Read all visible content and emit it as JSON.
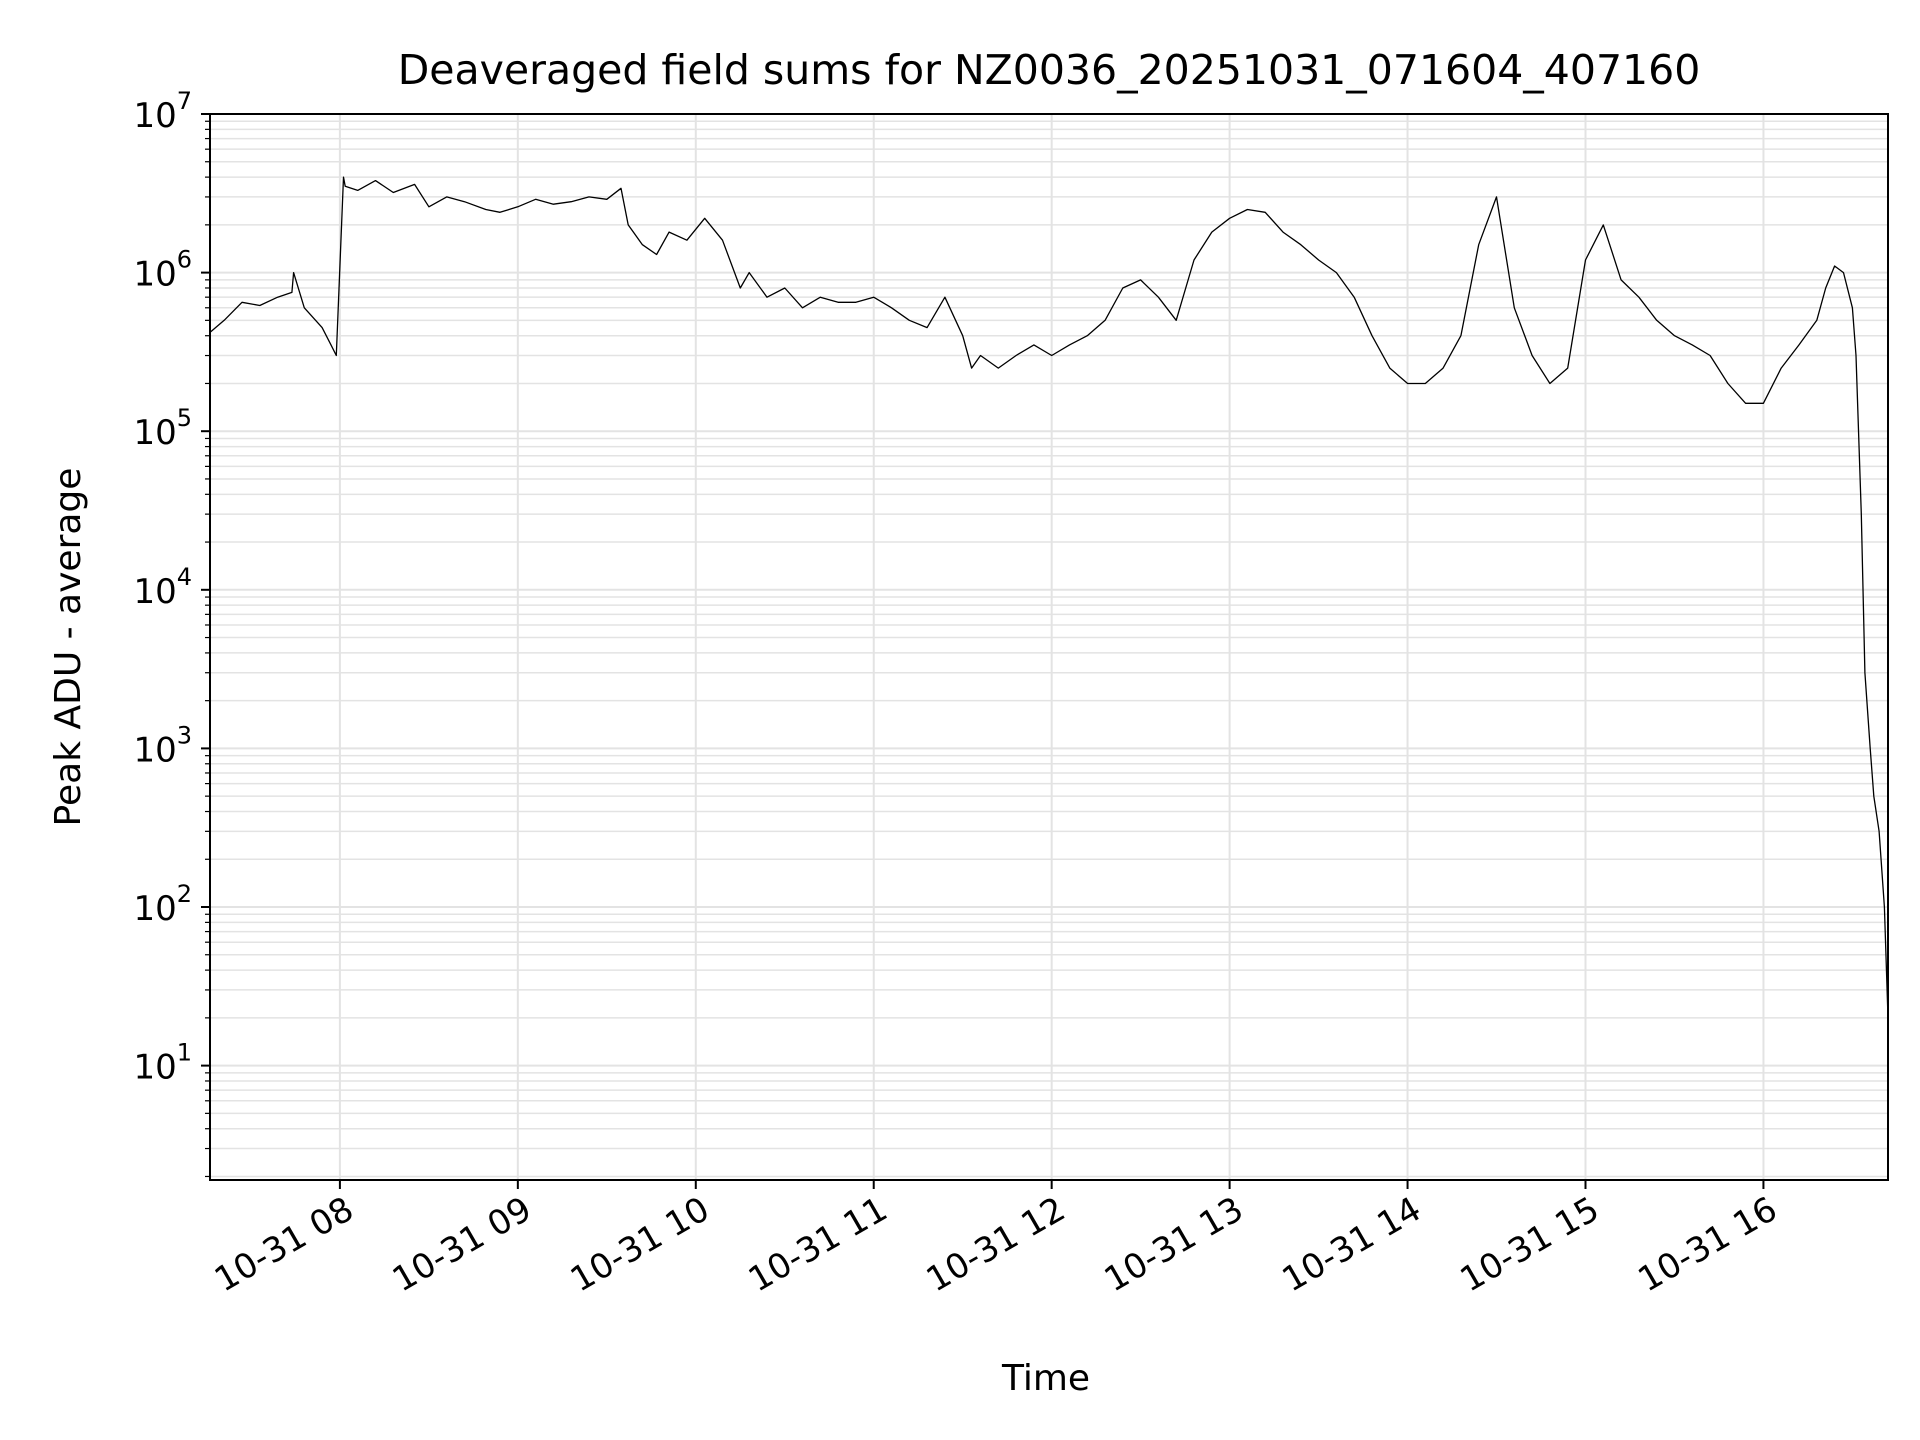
{
  "chart_data": {
    "type": "line",
    "title": "Deaveraged field sums for NZ0036_20251031_071604_407160",
    "xlabel": "Time",
    "ylabel": "Peak ADU - average",
    "yscale": "log",
    "xlim_hours": [
      7.27,
      16.7
    ],
    "ylim": [
      1.9,
      10000000
    ],
    "grid": "on",
    "legend": "none",
    "line_color": "#000000",
    "x_ticks": [
      {
        "hour": 8,
        "label": "10-31 08"
      },
      {
        "hour": 9,
        "label": "10-31 09"
      },
      {
        "hour": 10,
        "label": "10-31 10"
      },
      {
        "hour": 11,
        "label": "10-31 11"
      },
      {
        "hour": 12,
        "label": "10-31 12"
      },
      {
        "hour": 13,
        "label": "10-31 13"
      },
      {
        "hour": 14,
        "label": "10-31 14"
      },
      {
        "hour": 15,
        "label": "10-31 15"
      },
      {
        "hour": 16,
        "label": "10-31 16"
      }
    ],
    "y_ticks": [
      {
        "value": 10,
        "base": "10",
        "exp": "1"
      },
      {
        "value": 100,
        "base": "10",
        "exp": "2"
      },
      {
        "value": 1000,
        "base": "10",
        "exp": "3"
      },
      {
        "value": 10000,
        "base": "10",
        "exp": "4"
      },
      {
        "value": 100000,
        "base": "10",
        "exp": "5"
      },
      {
        "value": 1000000,
        "base": "10",
        "exp": "6"
      },
      {
        "value": 10000000,
        "base": "10",
        "exp": "7"
      }
    ],
    "series": [
      {
        "name": "Peak ADU - average",
        "x_hours": [
          7.27,
          7.35,
          7.45,
          7.55,
          7.65,
          7.73,
          7.74,
          7.8,
          7.9,
          7.95,
          7.98,
          8.02,
          8.03,
          8.1,
          8.2,
          8.3,
          8.42,
          8.5,
          8.6,
          8.7,
          8.82,
          8.9,
          9.0,
          9.1,
          9.2,
          9.3,
          9.4,
          9.5,
          9.58,
          9.62,
          9.7,
          9.78,
          9.85,
          9.95,
          10.05,
          10.15,
          10.25,
          10.3,
          10.4,
          10.5,
          10.6,
          10.7,
          10.8,
          10.9,
          11.0,
          11.1,
          11.2,
          11.3,
          11.4,
          11.5,
          11.55,
          11.6,
          11.7,
          11.8,
          11.9,
          12.0,
          12.1,
          12.2,
          12.3,
          12.4,
          12.5,
          12.6,
          12.7,
          12.8,
          12.9,
          13.0,
          13.1,
          13.2,
          13.3,
          13.4,
          13.5,
          13.6,
          13.7,
          13.8,
          13.9,
          14.0,
          14.1,
          14.2,
          14.3,
          14.4,
          14.5,
          14.6,
          14.7,
          14.8,
          14.9,
          15.0,
          15.1,
          15.2,
          15.3,
          15.4,
          15.5,
          15.6,
          15.7,
          15.8,
          15.9,
          16.0,
          16.1,
          16.2,
          16.3,
          16.35,
          16.4,
          16.45,
          16.5,
          16.52,
          16.55,
          16.57,
          16.6,
          16.62,
          16.65,
          16.68,
          16.7
        ],
        "values": [
          420000,
          500000,
          650000,
          620000,
          700000,
          750000,
          1000000,
          600000,
          450000,
          350000,
          300000,
          4000000,
          3500000,
          3300000,
          3800000,
          3200000,
          3600000,
          2600000,
          3000000,
          2800000,
          2500000,
          2400000,
          2600000,
          2900000,
          2700000,
          2800000,
          3000000,
          2900000,
          3400000,
          2000000,
          1500000,
          1300000,
          1800000,
          1600000,
          2200000,
          1600000,
          800000,
          1000000,
          700000,
          800000,
          600000,
          700000,
          650000,
          650000,
          700000,
          600000,
          500000,
          450000,
          700000,
          400000,
          250000,
          300000,
          250000,
          300000,
          350000,
          300000,
          350000,
          400000,
          500000,
          800000,
          900000,
          700000,
          500000,
          1200000,
          1800000,
          2200000,
          2500000,
          2400000,
          1800000,
          1500000,
          1200000,
          1000000,
          700000,
          400000,
          250000,
          200000,
          200000,
          250000,
          400000,
          1500000,
          3000000,
          600000,
          300000,
          200000,
          250000,
          1200000,
          2000000,
          900000,
          700000,
          500000,
          400000,
          350000,
          300000,
          200000,
          150000,
          150000,
          250000,
          350000,
          500000,
          800000,
          1100000,
          1000000,
          600000,
          300000,
          30000,
          3000,
          1000,
          500,
          300,
          100,
          20
        ]
      }
    ]
  }
}
